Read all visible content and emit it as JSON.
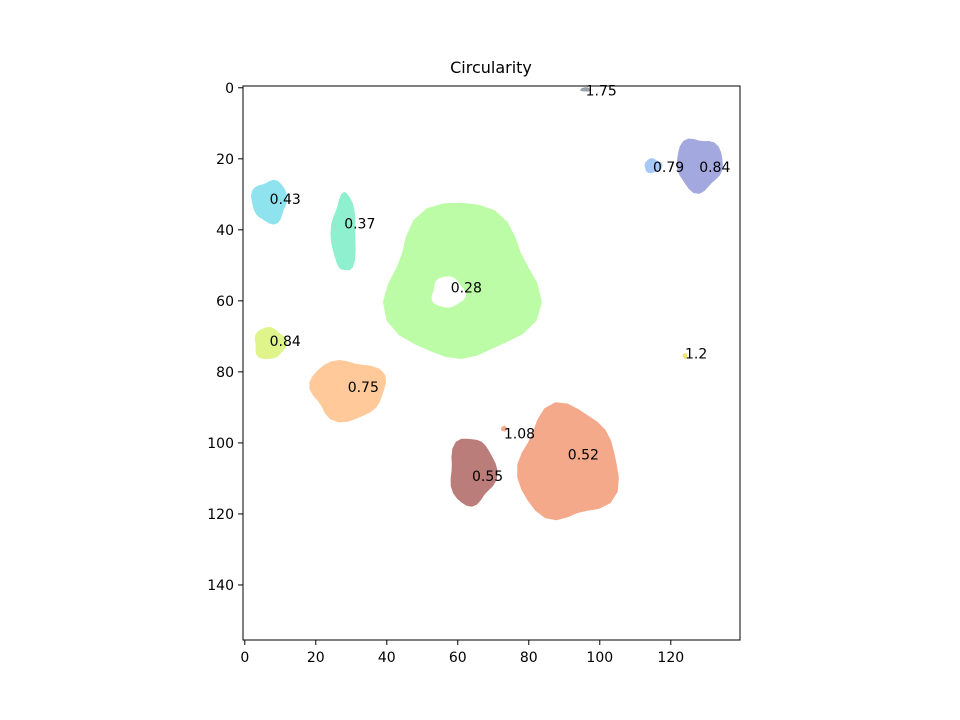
{
  "chart_data": {
    "type": "scatter",
    "title": "Circularity",
    "xlabel": "",
    "ylabel": "",
    "xlim": [
      -0.5,
      139.5
    ],
    "ylim": [
      155.5,
      -0.5
    ],
    "y_inverted": true,
    "grid": false,
    "xticks": [
      0,
      20,
      40,
      60,
      80,
      100,
      120
    ],
    "yticks": [
      0,
      20,
      40,
      60,
      80,
      100,
      120,
      140
    ],
    "points": [
      {
        "label": "1.75",
        "x": 96,
        "y": 0.5,
        "rx": 1.5,
        "ry": 0.6,
        "color": "#9aa3a8",
        "shape": "blob"
      },
      {
        "label": "0.79",
        "x": 115,
        "y": 22,
        "rx": 2.5,
        "ry": 2.0,
        "color": "#a6c8f7",
        "shape": "blob"
      },
      {
        "label": "0.84",
        "x": 128,
        "y": 21.5,
        "rx": 6.5,
        "ry": 7.5,
        "color": "#a3a8de",
        "shape": "blob"
      },
      {
        "label": "0.43",
        "x": 7,
        "y": 32,
        "rx": 5,
        "ry": 6,
        "color": "#8ee3ef",
        "shape": "blob"
      },
      {
        "label": "0.37",
        "x": 28,
        "y": 41,
        "rx": 3.5,
        "ry": 11,
        "color": "#8ff0cf",
        "shape": "blob"
      },
      {
        "label": "0.28",
        "x": 61,
        "y": 55,
        "rx": 21,
        "ry": 22,
        "color": "#bdfca6",
        "shape": "ring"
      },
      {
        "label": "0.84",
        "x": 7,
        "y": 72,
        "rx": 4.5,
        "ry": 4.5,
        "color": "#dff58c",
        "shape": "blob"
      },
      {
        "label": "0.75",
        "x": 29,
        "y": 85,
        "rx": 10.5,
        "ry": 8.5,
        "color": "#ffc99a",
        "shape": "blob"
      },
      {
        "label": "1.2",
        "x": 124,
        "y": 75.5,
        "rx": 0.6,
        "ry": 0.8,
        "color": "#f2e36a",
        "shape": "blob"
      },
      {
        "label": "1.08",
        "x": 73,
        "y": 96,
        "rx": 0.8,
        "ry": 0.8,
        "color": "#f4a98a",
        "shape": "blob"
      },
      {
        "label": "0.52",
        "x": 91,
        "y": 106,
        "rx": 14,
        "ry": 16,
        "color": "#f4a98a",
        "shape": "blob"
      },
      {
        "label": "0.55",
        "x": 64,
        "y": 108,
        "rx": 6.5,
        "ry": 9.5,
        "color": "#bb7d7a",
        "shape": "blob"
      }
    ],
    "annotations": [
      {
        "text": "1.75",
        "x": 96,
        "y": 0.5
      },
      {
        "text": "0.79",
        "x": 115,
        "y": 22
      },
      {
        "text": "0.84",
        "x": 128,
        "y": 22
      },
      {
        "text": "0.43",
        "x": 7,
        "y": 31
      },
      {
        "text": "0.37",
        "x": 28,
        "y": 38
      },
      {
        "text": "0.28",
        "x": 58,
        "y": 56
      },
      {
        "text": "0.84",
        "x": 7,
        "y": 71
      },
      {
        "text": "0.75",
        "x": 29,
        "y": 84
      },
      {
        "text": "1.2",
        "x": 124,
        "y": 74.5
      },
      {
        "text": "1.08",
        "x": 73,
        "y": 97
      },
      {
        "text": "0.52",
        "x": 91,
        "y": 103
      },
      {
        "text": "0.55",
        "x": 64,
        "y": 109
      }
    ]
  }
}
